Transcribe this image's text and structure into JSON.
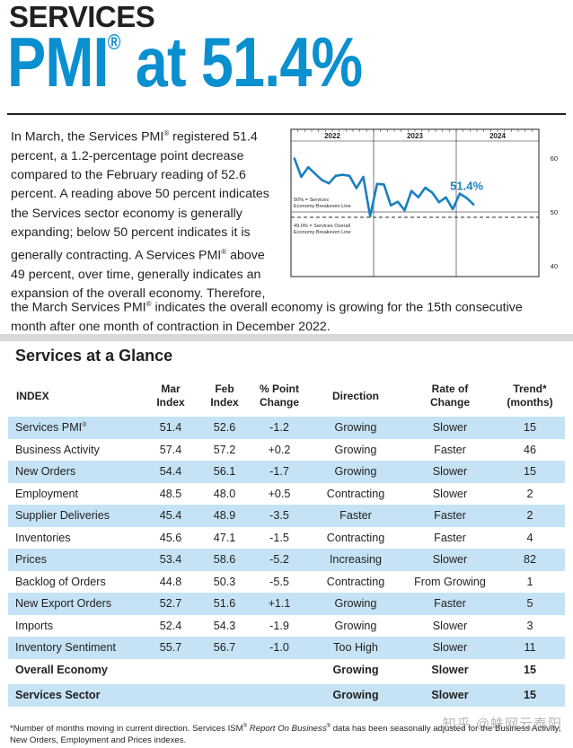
{
  "header": {
    "kicker": "SERVICES",
    "headline_main": "PMI",
    "headline_reg": "®",
    "headline_rest": " at 51.4%"
  },
  "intro": {
    "p1a": "In March, the Services PMI",
    "p1b": " registered 51.4 percent, a 1.2-percentage point decrease compared to the February reading of 52.6 percent. A reading above 50 percent indicates the Services sector economy is generally expanding; below 50 percent indicates it is generally contracting. A Services PMI",
    "p1c": " above 49 percent, over time, generally indicates an expansion of the overall economy. Therefore,",
    "p2a": "the March Services PMI",
    "p2b": " indicates the overall economy is growing for the 15th consecutive month after one month of contraction in December 2022.",
    "reg": "®"
  },
  "chart_data": {
    "type": "line",
    "title": "",
    "years": [
      "2022",
      "2023",
      "2024"
    ],
    "ylim": [
      38,
      63
    ],
    "yticks": [
      40,
      50,
      60
    ],
    "series": [
      {
        "name": "Services PMI",
        "months": [
          "2022-01",
          "2022-02",
          "2022-03",
          "2022-04",
          "2022-05",
          "2022-06",
          "2022-07",
          "2022-08",
          "2022-09",
          "2022-10",
          "2022-11",
          "2022-12",
          "2023-01",
          "2023-02",
          "2023-03",
          "2023-04",
          "2023-05",
          "2023-06",
          "2023-07",
          "2023-08",
          "2023-09",
          "2023-10",
          "2023-11",
          "2023-12",
          "2024-01",
          "2024-02",
          "2024-03"
        ],
        "values": [
          59.9,
          56.5,
          58.3,
          57.1,
          55.9,
          55.3,
          56.7,
          56.9,
          56.7,
          54.4,
          56.5,
          49.2,
          55.2,
          55.1,
          51.2,
          51.9,
          50.3,
          53.9,
          52.7,
          54.5,
          53.6,
          51.8,
          52.7,
          50.5,
          53.4,
          52.6,
          51.4
        ]
      }
    ],
    "last_value_label": "51.4%",
    "reference_lines": [
      {
        "value": 50.0,
        "label_line1": "50% = Services",
        "label_line2": "Economy Breakeven Line",
        "style": "solid"
      },
      {
        "value": 49.0,
        "label_line1": "49.0% = Services Overall",
        "label_line2": "Economy Breakeven Line",
        "style": "dashed"
      }
    ],
    "colors": {
      "line": "#1a7fbf",
      "label": "#1a7fbf",
      "ref": "#555555"
    }
  },
  "glance": {
    "title": "Services at a Glance",
    "columns": {
      "index": "INDEX",
      "mar_1": "Mar",
      "mar_2": "Index",
      "feb_1": "Feb",
      "feb_2": "Index",
      "chg_1": "% Point",
      "chg_2": "Change",
      "dir": "Direction",
      "rate_1": "Rate of",
      "rate_2": "Change",
      "trend_1": "Trend*",
      "trend_2": "(months)"
    },
    "rows": [
      {
        "name": "Services PMI",
        "reg": "®",
        "mar": "51.4",
        "feb": "52.6",
        "chg": "-1.2",
        "dir": "Growing",
        "rate": "Slower",
        "trend": "15"
      },
      {
        "name": "Business Activity",
        "mar": "57.4",
        "feb": "57.2",
        "chg": "+0.2",
        "dir": "Growing",
        "rate": "Faster",
        "trend": "46"
      },
      {
        "name": "New Orders",
        "mar": "54.4",
        "feb": "56.1",
        "chg": "-1.7",
        "dir": "Growing",
        "rate": "Slower",
        "trend": "15"
      },
      {
        "name": "Employment",
        "mar": "48.5",
        "feb": "48.0",
        "chg": "+0.5",
        "dir": "Contracting",
        "rate": "Slower",
        "trend": "2"
      },
      {
        "name": "Supplier Deliveries",
        "mar": "45.4",
        "feb": "48.9",
        "chg": "-3.5",
        "dir": "Faster",
        "rate": "Faster",
        "trend": "2"
      },
      {
        "name": "Inventories",
        "mar": "45.6",
        "feb": "47.1",
        "chg": "-1.5",
        "dir": "Contracting",
        "rate": "Faster",
        "trend": "4"
      },
      {
        "name": "Prices",
        "mar": "53.4",
        "feb": "58.6",
        "chg": "-5.2",
        "dir": "Increasing",
        "rate": "Slower",
        "trend": "82"
      },
      {
        "name": "Backlog of Orders",
        "mar": "44.8",
        "feb": "50.3",
        "chg": "-5.5",
        "dir": "Contracting",
        "rate": "From Growing",
        "trend": "1"
      },
      {
        "name": "New Export Orders",
        "mar": "52.7",
        "feb": "51.6",
        "chg": "+1.1",
        "dir": "Growing",
        "rate": "Faster",
        "trend": "5"
      },
      {
        "name": "Imports",
        "mar": "52.4",
        "feb": "54.3",
        "chg": "-1.9",
        "dir": "Growing",
        "rate": "Slower",
        "trend": "3"
      },
      {
        "name": "Inventory Sentiment",
        "mar": "55.7",
        "feb": "56.7",
        "chg": "-1.0",
        "dir": "Too High",
        "rate": "Slower",
        "trend": "11"
      }
    ],
    "summary": [
      {
        "name": "Overall Economy",
        "dir": "Growing",
        "rate": "Slower",
        "trend": "15"
      },
      {
        "name": "Services Sector",
        "dir": "Growing",
        "rate": "Slower",
        "trend": "15"
      }
    ]
  },
  "footnote": {
    "a": "*Number of months moving in current direction. Services ISM",
    "reg": "®",
    "italic": " Report On Business",
    "reg2": "®",
    "b": " data has been seasonally adjusted for the Business Activity,",
    "c": "New Orders, Employment and Prices indexes."
  },
  "watermark": "知乎 @蛛网云泰阳"
}
